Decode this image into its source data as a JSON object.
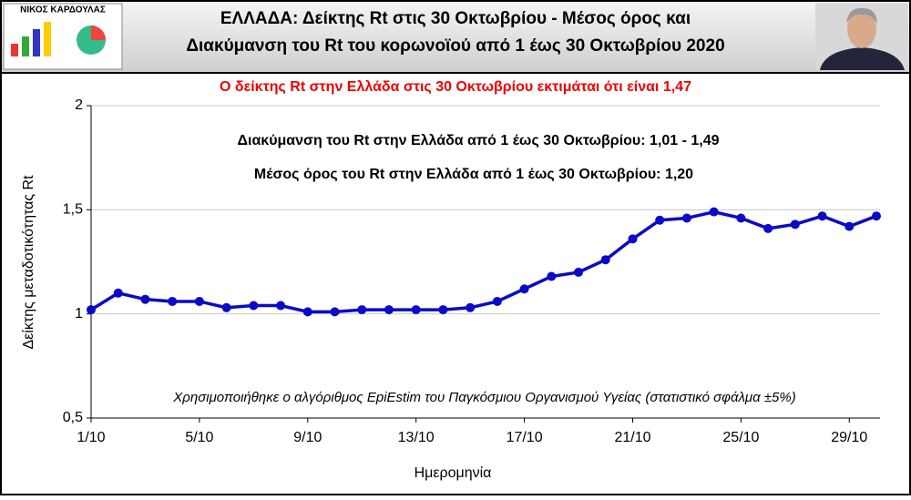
{
  "chart_data": {
    "type": "line",
    "title": [
      "ΕΛΛΑΔΑ: Δείκτης Rt στις 30 Οκτωβρίου - Μέσος όρος και",
      "Διακύμανση του Rt του κορωνοϊού από 1 έως 30 Οκτωβρίου 2020"
    ],
    "logo_text": "ΝΙΚΟΣ ΚΑΡΔΟΥΛΑΣ",
    "subtitle": "Ο δείκτης Rt στην Ελλάδα στις 30 Οκτωβρίου εκτιμάται ότι είναι 1,47",
    "annotations": [
      "Διακύμανση του Rt στην Ελλάδα από 1 έως 30 Οκτωβρίου: 1,01 -  1,49",
      "Μέσος όρος του Rt στην Ελλάδα από 1 έως 30 Οκτωβρίου: 1,20",
      "Χρησιμοποιήθηκε ο αλγόριθμος EpiEstim του Παγκόσμιου Οργανισμού Υγείας (στατιστικό σφάλμα ±5%)"
    ],
    "xlabel": "Ημερομηνία",
    "ylabel": "Δείκτης μεταδοτικότητας Rt",
    "categories": [
      "1/10",
      null,
      null,
      null,
      "5/10",
      null,
      null,
      null,
      "9/10",
      null,
      null,
      null,
      "13/10",
      null,
      null,
      null,
      "17/10",
      null,
      null,
      null,
      "21/10",
      null,
      null,
      null,
      "25/10",
      null,
      null,
      null,
      "29/10",
      null
    ],
    "series": [
      {
        "name": "Rt",
        "color": "#0a0ac8",
        "values": [
          1.02,
          1.1,
          1.07,
          1.06,
          1.06,
          1.03,
          1.04,
          1.04,
          1.01,
          1.01,
          1.02,
          1.02,
          1.02,
          1.02,
          1.03,
          1.06,
          1.12,
          1.18,
          1.2,
          1.26,
          1.36,
          1.45,
          1.46,
          1.49,
          1.46,
          1.41,
          1.43,
          1.47,
          1.42,
          1.47
        ]
      }
    ],
    "ylim": [
      0.5,
      2
    ],
    "yticks": [
      {
        "value": 0.5,
        "label": "0,5"
      },
      1,
      {
        "value": 1.5,
        "label": "1,5"
      },
      2
    ],
    "grid": true
  }
}
